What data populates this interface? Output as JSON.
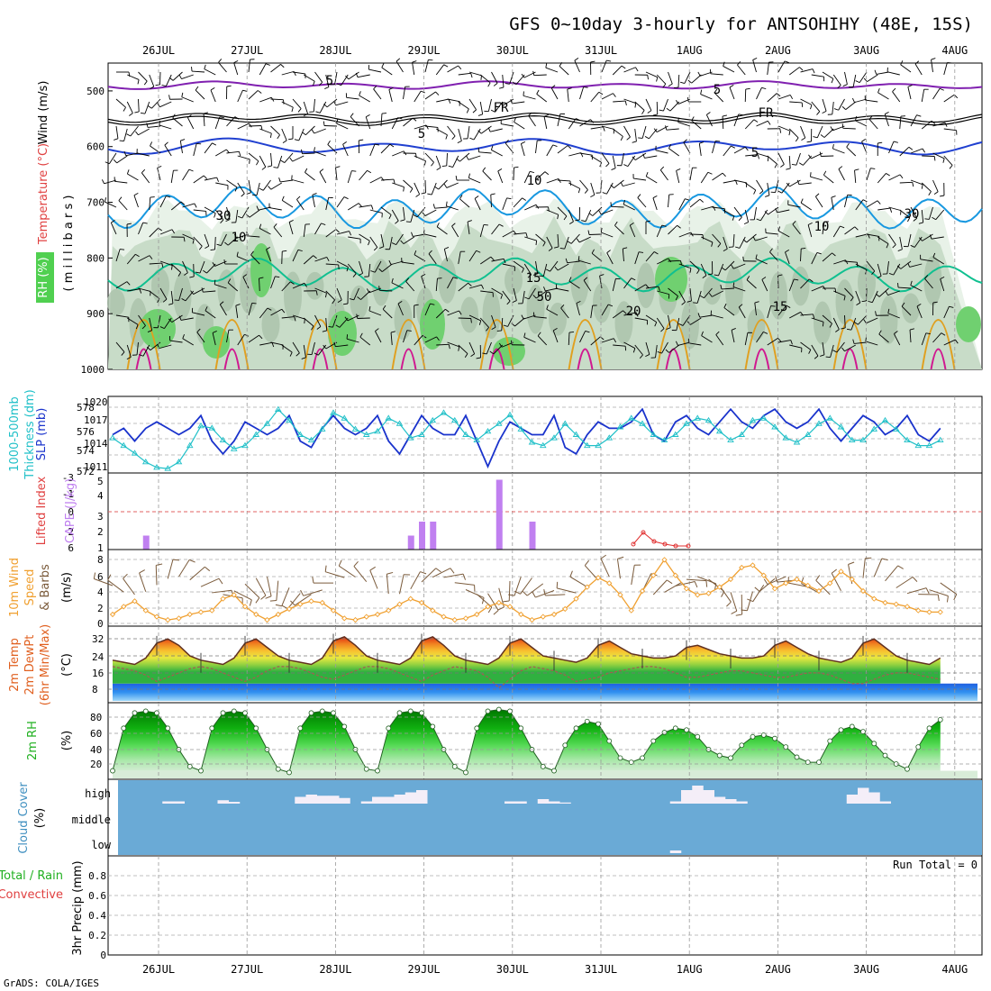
{
  "title": "GFS 0~10day 3-hourly for ANTSOHIHY (48E, 15S)",
  "footer": "GrADS: COLA/IGES",
  "run_total": "Run Total = 0",
  "dates": [
    "26JUL",
    "27JUL",
    "28JUL",
    "29JUL",
    "30JUL",
    "31JUL",
    "1AUG",
    "2AUG",
    "3AUG",
    "4AUG"
  ],
  "colors": {
    "slp": "#1a33cc",
    "thick": "#20c0c8",
    "cape": "#c080f0",
    "li": "#e03030",
    "wind": "#f0a030",
    "barb": "#7a5a3a",
    "cloud": "#6aaad6",
    "cloud_block": "#f4eef8",
    "purple": "#8020b0",
    "blue5": "#2040d0",
    "cyan10": "#1898e0",
    "green15": "#10c090",
    "orange20": "#e0a020",
    "magenta": "#d01890"
  },
  "panels": {
    "upper": {
      "ylabel_wind": "Wind (m/s)",
      "ylabel_temp": "Temperature (°C)",
      "ylabel_rh": "RH (%)",
      "ylabel_pres": "( m i l l i b a r s )",
      "yticks": [
        "500",
        "600",
        "700",
        "800",
        "900",
        "1000"
      ],
      "contour_labels": [
        "5",
        "5",
        "FR",
        "FR",
        "5",
        "5",
        "10",
        "10",
        "10",
        "15",
        "15",
        "20",
        "30",
        "30",
        "50"
      ]
    },
    "slp": {
      "ylabel1": "1000-500mb",
      "ylabel2": "Thickness (dm)",
      "ylabel3": "SLP (mb)",
      "left_ticks": [
        "578",
        "576",
        "574",
        "572"
      ],
      "right_ticks": [
        "1020",
        "1017",
        "1014",
        "1011"
      ]
    },
    "cape": {
      "ylabel1": "Lifted Index",
      "ylabel2": "CAPE (J/kg)",
      "li_ticks": [
        "-3",
        "-1",
        "0",
        "2",
        "6"
      ],
      "cape_ticks": [
        "5",
        "4",
        "3",
        "2",
        "1"
      ]
    },
    "wind10": {
      "ylabel1": "10m Wind",
      "ylabel2": "Speed",
      "ylabel3": "& Barbs",
      "ylabel4": "(m/s)",
      "ticks": [
        "8",
        "6",
        "4",
        "2",
        "0"
      ]
    },
    "temp": {
      "ylabel1": "2m Temp",
      "ylabel2": "2m DewPt",
      "ylabel3": "(6hr Min/Max)",
      "ylabel4": "(°C)",
      "ticks": [
        "32",
        "24",
        "16",
        "8"
      ]
    },
    "rh": {
      "ylabel1": "2m RH",
      "ylabel2": "(%)",
      "ticks": [
        "80",
        "60",
        "40",
        "20"
      ]
    },
    "cloud": {
      "ylabel1": "Cloud Cover",
      "ylabel2": "(%)",
      "levels": [
        "high",
        "middle",
        "low"
      ]
    },
    "precip": {
      "ylabel1": "Total / Rain",
      "ylabel2": "Convective",
      "ylabel3": "3hr Precip (mm)",
      "ticks": [
        "0.8",
        "0.6",
        "0.4",
        "0.2",
        "0"
      ]
    }
  },
  "chart_data": {
    "type": "line",
    "x": [
      "25JUL 18Z",
      "26JUL 00Z",
      "26JUL 03Z",
      "26JUL 06Z",
      "26JUL 09Z",
      "26JUL 12Z",
      "26JUL 15Z",
      "26JUL 18Z",
      "26JUL 21Z",
      "27JUL 00Z",
      "27JUL 03Z",
      "27JUL 06Z",
      "27JUL 09Z",
      "27JUL 12Z",
      "27JUL 15Z",
      "27JUL 18Z",
      "27JUL 21Z",
      "28JUL 00Z",
      "28JUL 03Z",
      "28JUL 06Z",
      "28JUL 09Z",
      "28JUL 12Z",
      "28JUL 15Z",
      "28JUL 18Z",
      "28JUL 21Z",
      "29JUL 00Z",
      "29JUL 03Z",
      "29JUL 06Z",
      "29JUL 09Z",
      "29JUL 12Z",
      "29JUL 15Z",
      "29JUL 18Z",
      "29JUL 21Z",
      "30JUL 00Z",
      "30JUL 03Z",
      "30JUL 06Z",
      "30JUL 09Z",
      "30JUL 12Z",
      "30JUL 15Z",
      "30JUL 18Z",
      "30JUL 21Z",
      "31JUL 00Z",
      "31JUL 03Z",
      "31JUL 06Z",
      "31JUL 09Z",
      "31JUL 12Z",
      "31JUL 15Z",
      "31JUL 18Z",
      "31JUL 21Z",
      "1AUG 00Z",
      "1AUG 03Z",
      "1AUG 06Z",
      "1AUG 09Z",
      "1AUG 12Z",
      "1AUG 15Z",
      "1AUG 18Z",
      "1AUG 21Z",
      "2AUG 00Z",
      "2AUG 03Z",
      "2AUG 06Z",
      "2AUG 09Z",
      "2AUG 12Z",
      "2AUG 15Z",
      "2AUG 18Z",
      "2AUG 21Z",
      "3AUG 00Z",
      "3AUG 03Z",
      "3AUG 06Z",
      "3AUG 09Z",
      "3AUG 12Z",
      "3AUG 15Z",
      "3AUG 18Z",
      "3AUG 21Z",
      "4AUG 00Z",
      "4AUG 03Z",
      "4AUG 06Z"
    ],
    "series": [
      {
        "name": "SLP (mb)",
        "values": [
          1016,
          1017,
          1015,
          1017,
          1018,
          1017,
          1016,
          1017,
          1019,
          1015,
          1013,
          1015,
          1018,
          1017,
          1016,
          1017,
          1019,
          1015,
          1014,
          1017,
          1019,
          1017,
          1016,
          1017,
          1019,
          1015,
          1013,
          1016,
          1019,
          1017,
          1016,
          1016,
          1019,
          1015,
          1011,
          1015,
          1018,
          1017,
          1016,
          1016,
          1019,
          1014,
          1013,
          1016,
          1018,
          1017,
          1017,
          1018,
          1020,
          1016,
          1015,
          1018,
          1019,
          1017,
          1016,
          1018,
          1020,
          1018,
          1017,
          1019,
          1020,
          1018,
          1017,
          1018,
          1020,
          1017,
          1015,
          1017,
          1019,
          1018,
          1016,
          1017,
          1019,
          1016,
          1015,
          1017
        ]
      },
      {
        "name": "Thickness (dm)",
        "values": [
          575.2,
          574.5,
          573.8,
          573.0,
          572.5,
          572.4,
          573.0,
          574.5,
          576.3,
          576.1,
          575.0,
          574.2,
          574.5,
          575.5,
          576.5,
          577.8,
          576.8,
          575.5,
          575.0,
          576.0,
          577.5,
          577.0,
          576.0,
          575.5,
          575.8,
          577.0,
          576.5,
          575.2,
          575.5,
          576.8,
          577.5,
          576.8,
          575.5,
          575.0,
          575.8,
          576.5,
          577.3,
          576.0,
          574.8,
          574.5,
          575.2,
          576.5,
          575.5,
          574.5,
          574.5,
          575.2,
          576.2,
          577.0,
          576.5,
          575.5,
          575.0,
          575.5,
          576.5,
          577.0,
          576.8,
          575.8,
          575.0,
          575.5,
          576.8,
          577.0,
          576.2,
          575.2,
          574.8,
          575.5,
          576.5,
          577.0,
          576.2,
          575.0,
          575.0,
          576.0,
          576.8,
          576.0,
          575.0,
          574.5,
          574.5,
          575.0
        ]
      },
      {
        "name": "10m Wind Speed (m/s)",
        "values": [
          1.5,
          2.5,
          3.2,
          2.0,
          1.2,
          0.8,
          1.0,
          1.5,
          1.8,
          2.0,
          3.5,
          4.0,
          2.5,
          1.5,
          0.8,
          1.5,
          2.2,
          2.8,
          3.2,
          3.0,
          2.0,
          1.0,
          0.8,
          1.2,
          1.5,
          2.0,
          2.8,
          3.5,
          3.0,
          2.0,
          1.2,
          0.8,
          1.0,
          1.5,
          2.5,
          3.0,
          2.5,
          1.5,
          0.8,
          1.2,
          1.5,
          2.2,
          3.5,
          5.0,
          6.2,
          5.5,
          4.0,
          2.0,
          4.5,
          6.5,
          8.5,
          6.5,
          4.8,
          4.0,
          4.2,
          5.0,
          6.0,
          7.5,
          7.8,
          6.5,
          4.8,
          5.5,
          6.0,
          5.2,
          4.5,
          5.5,
          7.0,
          6.0,
          4.5,
          3.5,
          3.0,
          2.8,
          2.5,
          2.0,
          1.8,
          1.8
        ]
      },
      {
        "name": "2m Temp (°C)",
        "values": [
          20,
          19,
          18,
          21,
          28,
          30,
          27,
          22,
          20,
          19,
          18,
          21,
          28,
          30,
          26,
          22,
          20,
          19,
          18,
          21,
          29,
          31,
          27,
          22,
          20,
          19,
          18,
          21,
          29,
          31,
          27,
          22,
          20,
          19,
          18,
          21,
          28,
          30,
          26,
          22,
          21,
          20,
          19,
          21,
          27,
          29,
          26,
          23,
          22,
          21,
          21,
          22,
          26,
          27,
          25,
          23,
          22,
          21,
          21,
          22,
          27,
          29,
          26,
          23,
          21,
          20,
          19,
          21,
          28,
          30,
          26,
          22,
          20,
          19,
          18,
          21
        ]
      },
      {
        "name": "2m DewPt (°C)",
        "values": [
          17,
          16,
          15,
          13,
          10,
          12,
          14,
          16,
          17,
          16,
          14,
          12,
          10,
          12,
          15,
          17,
          17,
          16,
          14,
          12,
          11,
          13,
          15,
          17,
          17,
          16,
          14,
          12,
          10,
          13,
          15,
          17,
          16,
          15,
          12,
          7,
          11,
          15,
          17,
          16,
          15,
          13,
          10,
          11,
          12,
          14,
          15,
          16,
          17,
          17,
          16,
          14,
          12,
          12,
          13,
          14,
          15,
          15,
          14,
          13,
          12,
          12,
          13,
          14,
          14,
          13,
          11,
          9,
          9,
          11,
          13,
          14,
          14,
          13,
          12,
          11
        ]
      },
      {
        "name": "2m RH (%)",
        "values": [
          20,
          70,
          88,
          90,
          88,
          70,
          45,
          25,
          20,
          70,
          88,
          90,
          88,
          70,
          45,
          22,
          18,
          70,
          88,
          90,
          88,
          72,
          45,
          22,
          20,
          70,
          88,
          90,
          88,
          72,
          45,
          25,
          18,
          70,
          90,
          92,
          90,
          70,
          45,
          25,
          20,
          50,
          70,
          78,
          75,
          55,
          35,
          30,
          35,
          55,
          65,
          70,
          68,
          60,
          45,
          38,
          35,
          50,
          60,
          62,
          58,
          48,
          36,
          30,
          30,
          55,
          68,
          72,
          66,
          52,
          38,
          28,
          22,
          48,
          70,
          80
        ]
      },
      {
        "name": "CAPE (J/kg)",
        "values": [
          0,
          0,
          0,
          1,
          0,
          0,
          0,
          0,
          0,
          0,
          0,
          0,
          0,
          0,
          0,
          0,
          0,
          0,
          0,
          0,
          0,
          0,
          0,
          0,
          0,
          0,
          0,
          1,
          2,
          2,
          0,
          0,
          0,
          0,
          0,
          5,
          0,
          0,
          2,
          0,
          0,
          0,
          0,
          0,
          0,
          0,
          0,
          0,
          0,
          0,
          0,
          0,
          0,
          0,
          0,
          0,
          0,
          0,
          0,
          0,
          0,
          0,
          0,
          0,
          0,
          0,
          0,
          0,
          0,
          0,
          0,
          0,
          0,
          0,
          0,
          0
        ]
      },
      {
        "name": "3hr Precip (mm)",
        "values": [
          0,
          0,
          0,
          0,
          0,
          0,
          0,
          0,
          0,
          0,
          0,
          0,
          0,
          0,
          0,
          0,
          0,
          0,
          0,
          0,
          0,
          0,
          0,
          0,
          0,
          0,
          0,
          0,
          0,
          0,
          0,
          0,
          0,
          0,
          0,
          0,
          0,
          0,
          0,
          0,
          0,
          0,
          0,
          0,
          0,
          0,
          0,
          0,
          0,
          0,
          0,
          0,
          0,
          0,
          0,
          0,
          0,
          0,
          0,
          0,
          0,
          0,
          0,
          0,
          0,
          0,
          0,
          0,
          0,
          0,
          0,
          0,
          0,
          0,
          0,
          0
        ]
      }
    ],
    "lifted_index": {
      "x": [
        "31JUL 12Z",
        "31JUL 15Z",
        "31JUL 18Z",
        "31JUL 21Z",
        "1AUG 00Z"
      ],
      "values": [
        -1,
        -2.5,
        -1.5,
        -1,
        -0.5
      ]
    },
    "high_cloud_pct": [
      0,
      0,
      0,
      0,
      0,
      10,
      10,
      0,
      0,
      0,
      15,
      8,
      0,
      0,
      0,
      0,
      0,
      30,
      40,
      35,
      35,
      25,
      0,
      10,
      30,
      30,
      40,
      50,
      60,
      0,
      0,
      0,
      0,
      0,
      0,
      0,
      10,
      10,
      0,
      20,
      10,
      5,
      0,
      0,
      0,
      0,
      0,
      0,
      0,
      0,
      0,
      10,
      60,
      80,
      60,
      30,
      20,
      10,
      0,
      0,
      0,
      0,
      0,
      0,
      0,
      0,
      0,
      40,
      70,
      50,
      10,
      0,
      0,
      0,
      0,
      0
    ],
    "low_cloud_pct": [
      0,
      0,
      0,
      0,
      0,
      0,
      0,
      0,
      0,
      0,
      0,
      0,
      0,
      0,
      0,
      0,
      0,
      0,
      0,
      0,
      0,
      0,
      0,
      0,
      0,
      0,
      0,
      0,
      0,
      0,
      0,
      0,
      0,
      0,
      0,
      0,
      0,
      0,
      0,
      0,
      0,
      0,
      0,
      0,
      0,
      0,
      0,
      0,
      0,
      0,
      0,
      10,
      0,
      0,
      0,
      0,
      0,
      0,
      0,
      0,
      0,
      0,
      0,
      0,
      0,
      0,
      0,
      0,
      0,
      0,
      0,
      0,
      0,
      0,
      0,
      0
    ],
    "ylim": {
      "pressure": [
        450,
        1000
      ],
      "slp": [
        1010,
        1022
      ],
      "thickness": [
        572,
        579
      ],
      "wind": [
        0,
        9
      ],
      "temp": [
        0,
        36
      ],
      "rh": [
        10,
        100
      ],
      "precip": [
        0,
        1
      ]
    }
  }
}
